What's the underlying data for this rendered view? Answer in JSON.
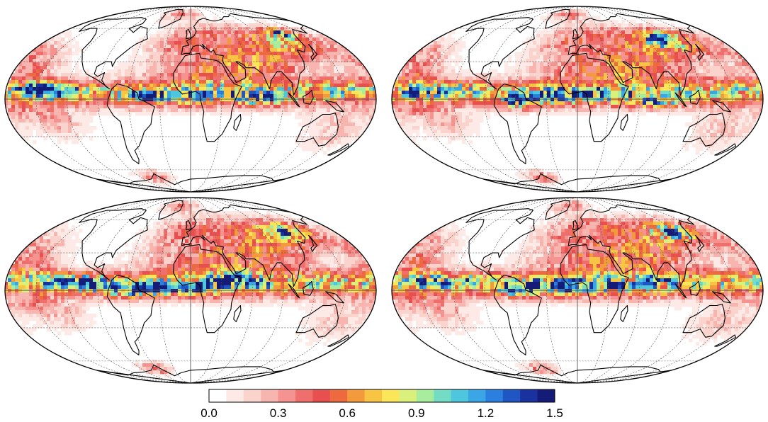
{
  "colorbar": {
    "min": 0.0,
    "max": 1.5,
    "tick_labels": [
      "0.0",
      "0.3",
      "0.6",
      "0.9",
      "1.2",
      "1.5"
    ],
    "tick_values": [
      0.0,
      0.3,
      0.6,
      0.9,
      1.2,
      1.5
    ],
    "colors": [
      "#ffffff",
      "#fde9e6",
      "#fbd3cd",
      "#f8b4ae",
      "#f4938f",
      "#ef6f6c",
      "#e8504f",
      "#ec6a3e",
      "#f39a3c",
      "#f8c444",
      "#fbe65a",
      "#d9f07a",
      "#a8ec9e",
      "#72dcc4",
      "#4ec6de",
      "#3aa6e6",
      "#2b7fde",
      "#1f56c4",
      "#1a32a0",
      "#141c78"
    ]
  },
  "map": {
    "projection": "mollweide",
    "land_outline_color": "#000000",
    "graticule_color": "#555555",
    "panels": [
      {
        "id": "top-left"
      },
      {
        "id": "top-right"
      },
      {
        "id": "bottom-left"
      },
      {
        "id": "bottom-right"
      }
    ]
  }
}
